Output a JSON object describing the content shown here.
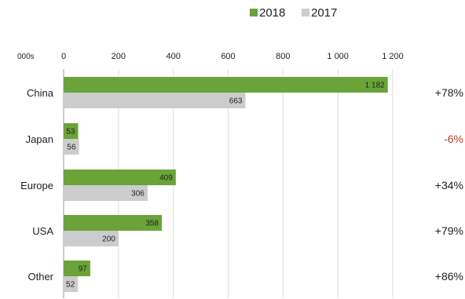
{
  "chart_data": {
    "type": "bar",
    "orientation": "horizontal",
    "unit_label": "000s",
    "categories": [
      "China",
      "Japan",
      "Europe",
      "USA",
      "Other"
    ],
    "series": [
      {
        "name": "2018",
        "color": "#6aa338",
        "values": [
          1182,
          53,
          409,
          358,
          97
        ],
        "value_labels": [
          "1 182",
          "53",
          "409",
          "358",
          "97"
        ]
      },
      {
        "name": "2017",
        "color": "#cccccc",
        "values": [
          663,
          56,
          306,
          200,
          52
        ],
        "value_labels": [
          "663",
          "56",
          "306",
          "200",
          "52"
        ]
      }
    ],
    "xlim": [
      0,
      1200
    ],
    "xticks": [
      0,
      200,
      400,
      600,
      800,
      1000,
      1200
    ],
    "xtick_labels": [
      "0",
      "200",
      "400",
      "600",
      "800",
      "1 000",
      "1 200"
    ],
    "grid": true,
    "legend_position": "top-right",
    "annotations": [
      {
        "category": "China",
        "text": "+78%",
        "color": "#222222"
      },
      {
        "category": "Japan",
        "text": "-6%",
        "color": "#c0392b"
      },
      {
        "category": "Europe",
        "text": "+34%",
        "color": "#222222"
      },
      {
        "category": "USA",
        "text": "+79%",
        "color": "#222222"
      },
      {
        "category": "Other",
        "text": "+86%",
        "color": "#222222"
      }
    ]
  }
}
